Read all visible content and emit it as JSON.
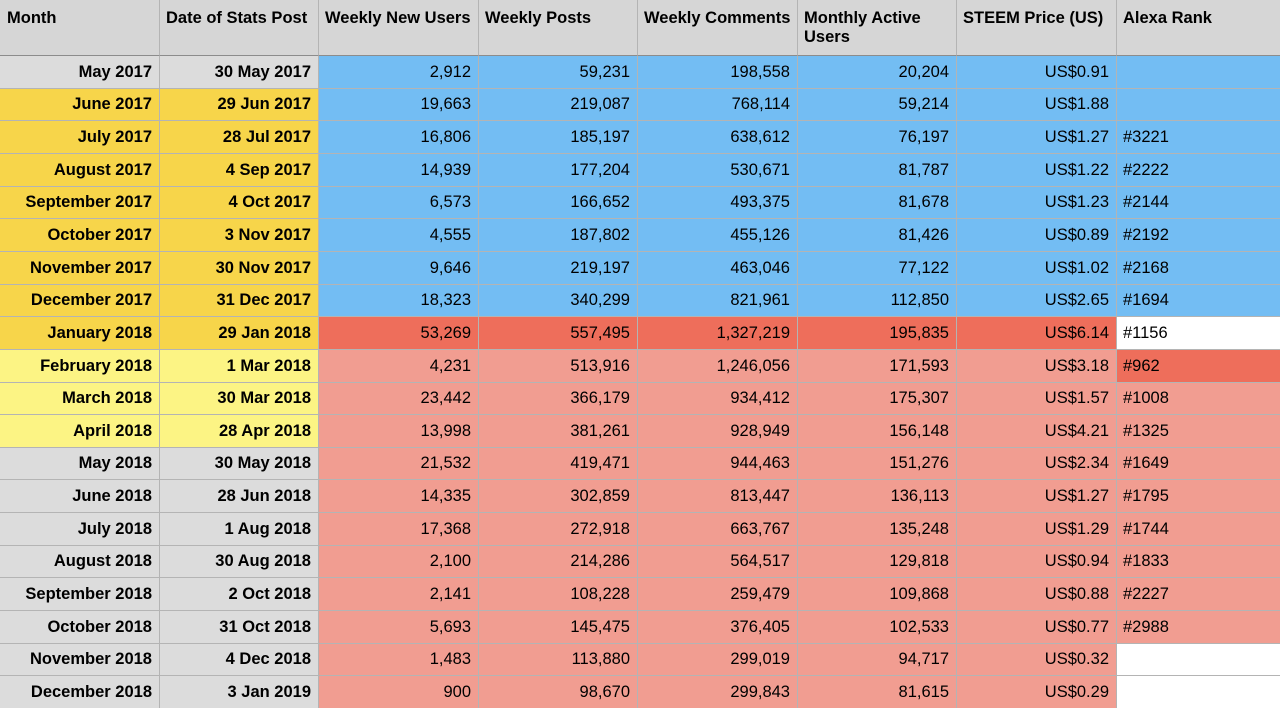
{
  "colors": {
    "header": "#d6d6d6",
    "grey": "#dcdcdc",
    "gold": "#f7d54a",
    "yellow": "#fcf484",
    "blue": "#73bdf3",
    "red": "#ee6e5b",
    "pink": "#f19d91",
    "white": "#ffffff"
  },
  "columns": [
    "Month",
    "Date of Stats Post",
    "Weekly New Users",
    "Weekly Posts",
    "Weekly Comments",
    "Monthly Active Users",
    "STEEM Price (US)",
    "Alexa Rank"
  ],
  "rows": [
    {
      "cells": [
        "May 2017",
        "30 May 2017",
        "2,912",
        "59,231",
        "198,558",
        "20,204",
        "US$0.91",
        ""
      ],
      "label_color": "grey",
      "data_color": "blue",
      "rank_color": "blue"
    },
    {
      "cells": [
        "June 2017",
        "29 Jun 2017",
        "19,663",
        "219,087",
        "768,114",
        "59,214",
        "US$1.88",
        ""
      ],
      "label_color": "gold",
      "data_color": "blue",
      "rank_color": "blue"
    },
    {
      "cells": [
        "July 2017",
        "28 Jul 2017",
        "16,806",
        "185,197",
        "638,612",
        "76,197",
        "US$1.27",
        "#3221"
      ],
      "label_color": "gold",
      "data_color": "blue",
      "rank_color": "blue"
    },
    {
      "cells": [
        "August 2017",
        "4 Sep 2017",
        "14,939",
        "177,204",
        "530,671",
        "81,787",
        "US$1.22",
        "#2222"
      ],
      "label_color": "gold",
      "data_color": "blue",
      "rank_color": "blue"
    },
    {
      "cells": [
        "September 2017",
        "4 Oct 2017",
        "6,573",
        "166,652",
        "493,375",
        "81,678",
        "US$1.23",
        "#2144"
      ],
      "label_color": "gold",
      "data_color": "blue",
      "rank_color": "blue"
    },
    {
      "cells": [
        "October 2017",
        "3 Nov 2017",
        "4,555",
        "187,802",
        "455,126",
        "81,426",
        "US$0.89",
        "#2192"
      ],
      "label_color": "gold",
      "data_color": "blue",
      "rank_color": "blue"
    },
    {
      "cells": [
        "November 2017",
        "30 Nov 2017",
        "9,646",
        "219,197",
        "463,046",
        "77,122",
        "US$1.02",
        "#2168"
      ],
      "label_color": "gold",
      "data_color": "blue",
      "rank_color": "blue"
    },
    {
      "cells": [
        "December 2017",
        "31 Dec 2017",
        "18,323",
        "340,299",
        "821,961",
        "112,850",
        "US$2.65",
        "#1694"
      ],
      "label_color": "gold",
      "data_color": "blue",
      "rank_color": "blue"
    },
    {
      "cells": [
        "January 2018",
        "29 Jan 2018",
        "53,269",
        "557,495",
        "1,327,219",
        "195,835",
        "US$6.14",
        "#1156"
      ],
      "label_color": "gold",
      "data_color": "red",
      "rank_color": "white"
    },
    {
      "cells": [
        "February 2018",
        "1 Mar 2018",
        "4,231",
        "513,916",
        "1,246,056",
        "171,593",
        "US$3.18",
        "#962"
      ],
      "label_color": "yellow",
      "data_color": "pink",
      "rank_color": "red"
    },
    {
      "cells": [
        "March 2018",
        "30 Mar 2018",
        "23,442",
        "366,179",
        "934,412",
        "175,307",
        "US$1.57",
        "#1008"
      ],
      "label_color": "yellow",
      "data_color": "pink",
      "rank_color": "pink"
    },
    {
      "cells": [
        "April 2018",
        "28 Apr 2018",
        "13,998",
        "381,261",
        "928,949",
        "156,148",
        "US$4.21",
        "#1325"
      ],
      "label_color": "yellow",
      "data_color": "pink",
      "rank_color": "pink"
    },
    {
      "cells": [
        "May 2018",
        "30 May 2018",
        "21,532",
        "419,471",
        "944,463",
        "151,276",
        "US$2.34",
        "#1649"
      ],
      "label_color": "grey",
      "data_color": "pink",
      "rank_color": "pink"
    },
    {
      "cells": [
        "June 2018",
        "28 Jun 2018",
        "14,335",
        "302,859",
        "813,447",
        "136,113",
        "US$1.27",
        "#1795"
      ],
      "label_color": "grey",
      "data_color": "pink",
      "rank_color": "pink"
    },
    {
      "cells": [
        "July 2018",
        "1 Aug 2018",
        "17,368",
        "272,918",
        "663,767",
        "135,248",
        "US$1.29",
        "#1744"
      ],
      "label_color": "grey",
      "data_color": "pink",
      "rank_color": "pink"
    },
    {
      "cells": [
        "August 2018",
        "30 Aug 2018",
        "2,100",
        "214,286",
        "564,517",
        "129,818",
        "US$0.94",
        "#1833"
      ],
      "label_color": "grey",
      "data_color": "pink",
      "rank_color": "pink"
    },
    {
      "cells": [
        "September 2018",
        "2 Oct 2018",
        "2,141",
        "108,228",
        "259,479",
        "109,868",
        "US$0.88",
        "#2227"
      ],
      "label_color": "grey",
      "data_color": "pink",
      "rank_color": "pink"
    },
    {
      "cells": [
        "October 2018",
        "31 Oct 2018",
        "5,693",
        "145,475",
        "376,405",
        "102,533",
        "US$0.77",
        "#2988"
      ],
      "label_color": "grey",
      "data_color": "pink",
      "rank_color": "pink"
    },
    {
      "cells": [
        "November 2018",
        "4 Dec 2018",
        "1,483",
        "113,880",
        "299,019",
        "94,717",
        "US$0.32",
        ""
      ],
      "label_color": "grey",
      "data_color": "pink",
      "rank_color": "white"
    },
    {
      "cells": [
        "December 2018",
        "3 Jan 2019",
        "900",
        "98,670",
        "299,843",
        "81,615",
        "US$0.29",
        ""
      ],
      "label_color": "grey",
      "data_color": "pink",
      "rank_color": "white"
    }
  ]
}
